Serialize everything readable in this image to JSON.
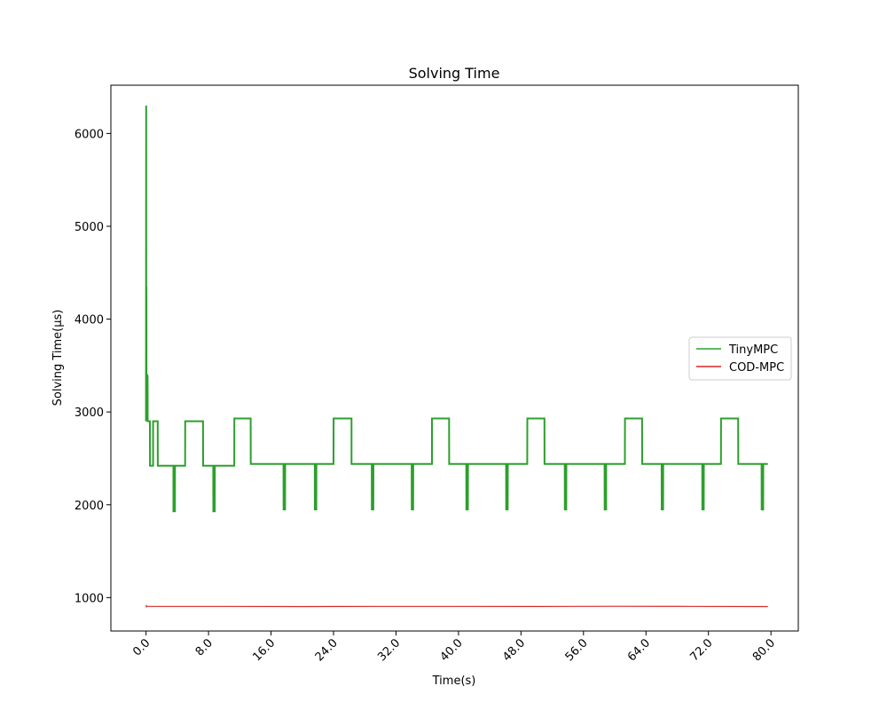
{
  "chart_data": {
    "type": "line",
    "title": "Solving Time",
    "xlabel": "Time(s)",
    "ylabel": "Solving Time(μs)",
    "xlim": [
      -4.5,
      83.5
    ],
    "ylim": [
      640,
      6520
    ],
    "xticks": [
      0,
      8,
      16,
      24,
      32,
      40,
      48,
      56,
      64,
      72,
      80
    ],
    "xtick_labels": [
      "0.0",
      "8.0",
      "16.0",
      "24.0",
      "32.0",
      "40.0",
      "48.0",
      "56.0",
      "64.0",
      "72.0",
      "80.0"
    ],
    "yticks": [
      1000,
      2000,
      3000,
      4000,
      5000,
      6000
    ],
    "ytick_labels": [
      "1000",
      "2000",
      "3000",
      "4000",
      "5000",
      "6000"
    ],
    "grid": false,
    "legend_position": "center-right",
    "series": [
      {
        "name": "TinyMPC",
        "color": "#2ca02c",
        "x": [
          0,
          0.02,
          0.03,
          0.05,
          0.06,
          0.1,
          0.11,
          0.2,
          0.21,
          0.5,
          0.51,
          0.9,
          0.91,
          1.5,
          1.51,
          2.2,
          2.21,
          3.5,
          3.51,
          3.7,
          3.71,
          5.0,
          5.01,
          5.8,
          5.81,
          7.3,
          7.31,
          8.6,
          8.61,
          8.8,
          8.81,
          11.3,
          11.31,
          13.4,
          13.41,
          17.6,
          17.61,
          17.8,
          17.81,
          21.6,
          21.61,
          21.8,
          21.81,
          24.0,
          24.01,
          26.3,
          26.31,
          28.9,
          28.91,
          29.1,
          29.11,
          34.0,
          34.01,
          34.2,
          34.21,
          36.6,
          36.61,
          38.8,
          38.81,
          41.0,
          41.01,
          41.2,
          41.21,
          46.1,
          46.11,
          46.3,
          46.31,
          48.8,
          48.81,
          51.0,
          51.01,
          53.6,
          53.61,
          53.8,
          53.81,
          58.7,
          58.71,
          58.9,
          58.91,
          61.3,
          61.31,
          63.5,
          63.51,
          66.0,
          66.01,
          66.2,
          66.21,
          71.2,
          71.21,
          71.4,
          71.41,
          73.6,
          73.61,
          75.8,
          75.81,
          78.8,
          78.81,
          79.0,
          79.01,
          79.6
        ],
        "y": [
          2900,
          6300,
          2900,
          4350,
          2950,
          3400,
          3400,
          3390,
          2900,
          2900,
          2420,
          2420,
          2900,
          2900,
          2420,
          2420,
          2420,
          2420,
          1930,
          1930,
          2420,
          2420,
          2900,
          2900,
          2900,
          2900,
          2420,
          2420,
          1930,
          1930,
          2420,
          2420,
          2930,
          2930,
          2440,
          2440,
          1950,
          1950,
          2440,
          2440,
          1950,
          1950,
          2440,
          2440,
          2930,
          2930,
          2440,
          2440,
          1950,
          1950,
          2440,
          2440,
          1950,
          1950,
          2440,
          2440,
          2930,
          2930,
          2440,
          2440,
          1950,
          1950,
          2440,
          2440,
          1950,
          1950,
          2440,
          2440,
          2930,
          2930,
          2440,
          2440,
          1950,
          1950,
          2440,
          2440,
          1950,
          1950,
          2440,
          2440,
          2930,
          2930,
          2440,
          2440,
          1950,
          1950,
          2440,
          2440,
          1950,
          1950,
          2440,
          2440,
          2930,
          2930,
          2440,
          2440,
          1950,
          1950,
          2440,
          2440
        ]
      },
      {
        "name": "COD-MPC",
        "color": "#d62728",
        "x": [
          0,
          0.05,
          0.1,
          10,
          20,
          30,
          40,
          50,
          60,
          70,
          79.6
        ],
        "y": [
          920,
          900,
          905,
          905,
          903,
          905,
          905,
          904,
          906,
          905,
          903
        ]
      }
    ]
  }
}
